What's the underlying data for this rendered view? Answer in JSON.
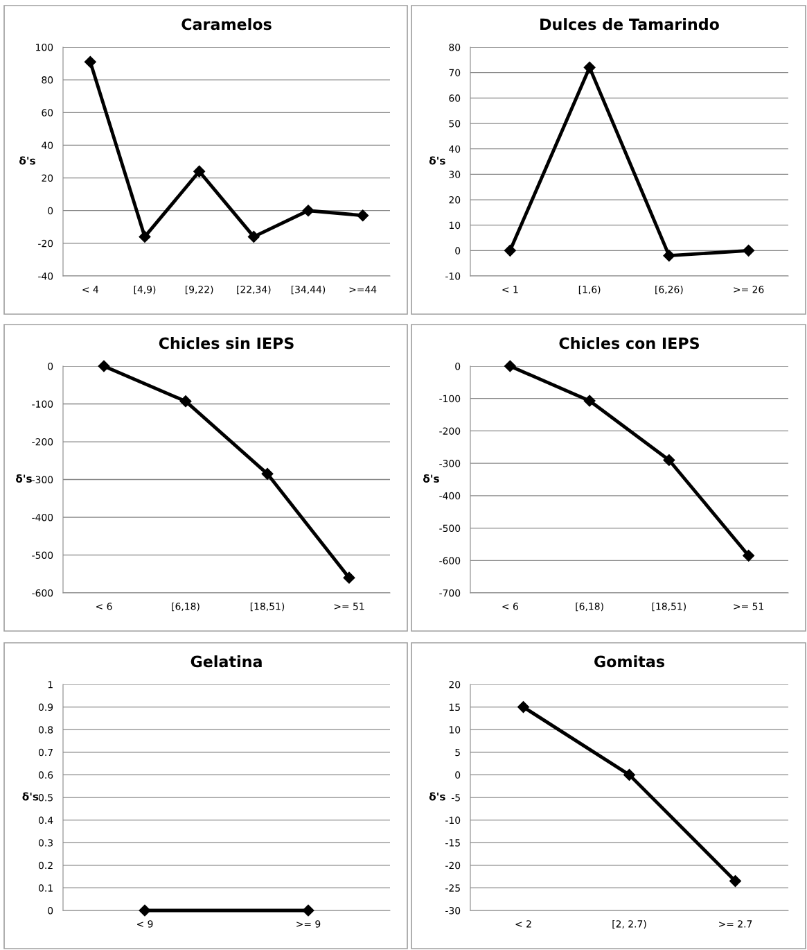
{
  "chart_data": [
    {
      "type": "line",
      "title": "Caramelos",
      "ylabel": "δ's",
      "categories": [
        "< 4",
        "[4,9)",
        "[9,22)",
        "[22,34)",
        "[34,44)",
        ">=44"
      ],
      "values": [
        91,
        -16,
        24,
        -16,
        0,
        -3
      ],
      "color": "#000000",
      "marker": "diamond",
      "grid": "y",
      "ylim": [
        -40,
        100
      ],
      "yticks": [
        -40,
        -20,
        0,
        20,
        40,
        60,
        80,
        100
      ]
    },
    {
      "type": "line",
      "title": "Dulces de Tamarindo",
      "ylabel": "δ's",
      "categories": [
        "< 1",
        "[1,6)",
        "[6,26)",
        ">= 26"
      ],
      "values": [
        0,
        72,
        -2,
        0
      ],
      "color": "#000000",
      "marker": "diamond",
      "grid": "y",
      "ylim": [
        -10,
        80
      ],
      "yticks": [
        -10,
        0,
        10,
        20,
        30,
        40,
        50,
        60,
        70,
        80
      ]
    },
    {
      "type": "line",
      "title": "Chicles sin IEPS",
      "ylabel": "δ's",
      "categories": [
        "< 6",
        "[6,18)",
        "[18,51)",
        ">= 51"
      ],
      "values": [
        0,
        -93,
        -285,
        -560
      ],
      "color": "#000000",
      "marker": "diamond",
      "grid": "y",
      "ylim": [
        -600,
        0
      ],
      "yticks": [
        -600,
        -500,
        -400,
        -300,
        -200,
        -100,
        0
      ]
    },
    {
      "type": "line",
      "title": "Chicles con IEPS",
      "ylabel": "δ's",
      "categories": [
        "< 6",
        "[6,18)",
        "[18,51)",
        ">= 51"
      ],
      "values": [
        0,
        -107,
        -290,
        -585
      ],
      "color": "#000000",
      "marker": "diamond",
      "grid": "y",
      "ylim": [
        -700,
        0
      ],
      "yticks": [
        -700,
        -600,
        -500,
        -400,
        -300,
        -200,
        -100,
        0
      ]
    },
    {
      "type": "line",
      "title": "Gelatina",
      "ylabel": "δ's",
      "categories": [
        "< 9",
        ">= 9"
      ],
      "values": [
        0,
        0
      ],
      "color": "#000000",
      "marker": "diamond",
      "grid": "y",
      "ylim": [
        0,
        1
      ],
      "yticks": [
        0,
        0.1,
        0.2,
        0.3,
        0.4,
        0.5,
        0.6,
        0.7,
        0.8,
        0.9,
        1
      ]
    },
    {
      "type": "line",
      "title": "Gomitas",
      "ylabel": "δ's",
      "categories": [
        "< 2",
        "[2, 2.7)",
        ">= 2.7"
      ],
      "values": [
        15,
        0,
        -23.5
      ],
      "color": "#000000",
      "marker": "diamond",
      "grid": "y",
      "ylim": [
        -30,
        20
      ],
      "yticks": [
        -30,
        -25,
        -20,
        -15,
        -10,
        -5,
        0,
        5,
        10,
        15,
        20
      ]
    }
  ]
}
